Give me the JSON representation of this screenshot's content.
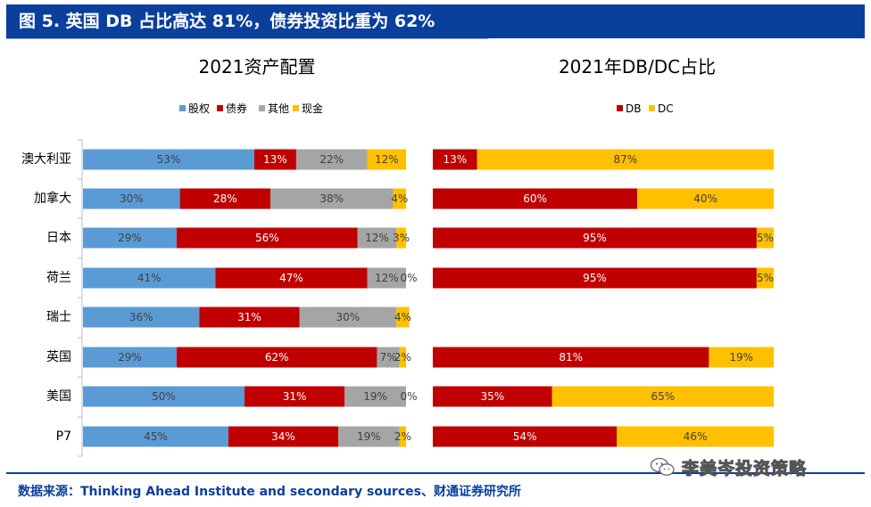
{
  "header": {
    "title": "图 5. 英国 DB 占比高达 81%，债券投资比重为 62%"
  },
  "source": "数据来源：Thinking Ahead Institute and secondary sources、财通证券研究所",
  "watermark": {
    "text": "李美岑投资策略",
    "icon": "wechat-icon"
  },
  "colors": {
    "header_bg": "#0a3f9c",
    "equity": "#5b9bd5",
    "bond": "#c00000",
    "other": "#a5a5a5",
    "cash": "#ffc000"
  },
  "chart_data": [
    {
      "type": "bar",
      "orientation": "horizontal",
      "stacked": true,
      "title": "2021资产配置",
      "categories": [
        "澳大利亚",
        "加拿大",
        "日本",
        "荷兰",
        "瑞士",
        "英国",
        "美国",
        "P7"
      ],
      "series": [
        {
          "name": "股权",
          "color": "#5b9bd5",
          "values": [
            53,
            30,
            29,
            41,
            36,
            29,
            50,
            45
          ],
          "labels": [
            "53%",
            "30%",
            "29%",
            "41%",
            "36%",
            "29%",
            "50%",
            "45%"
          ]
        },
        {
          "name": "债券",
          "color": "#c00000",
          "values": [
            13,
            28,
            56,
            47,
            31,
            62,
            31,
            34
          ],
          "labels": [
            "13%",
            "28%",
            "56%",
            "47%",
            "31%",
            "62%",
            "31%",
            "34%"
          ]
        },
        {
          "name": "其他",
          "color": "#a5a5a5",
          "values": [
            22,
            38,
            12,
            12,
            30,
            7,
            19,
            19
          ],
          "labels": [
            "22%",
            "38%",
            "12%",
            "12%",
            "30%",
            "7%",
            "19%",
            "19%"
          ]
        },
        {
          "name": "现金",
          "color": "#ffc000",
          "values": [
            12,
            4,
            3,
            0,
            4,
            2,
            0,
            2
          ],
          "labels": [
            "12%",
            "4%",
            "3%",
            "0%",
            "4%",
            "2%",
            "0%",
            "2%"
          ]
        }
      ],
      "xlim": [
        0,
        100
      ],
      "legend": "top",
      "grid": false
    },
    {
      "type": "bar",
      "orientation": "horizontal",
      "stacked": true,
      "title": "2021年DB/DC占比",
      "categories": [
        "澳大利亚",
        "加拿大",
        "日本",
        "荷兰",
        "瑞士",
        "英国",
        "美国",
        "P7"
      ],
      "series": [
        {
          "name": "DB",
          "color": "#c00000",
          "values": [
            13,
            60,
            95,
            95,
            null,
            81,
            35,
            54
          ],
          "labels": [
            "13%",
            "60%",
            "95%",
            "95%",
            "",
            "81%",
            "35%",
            "54%"
          ]
        },
        {
          "name": "DC",
          "color": "#ffc000",
          "values": [
            87,
            40,
            5,
            5,
            null,
            19,
            65,
            46
          ],
          "labels": [
            "87%",
            "40%",
            "5%",
            "5%",
            "",
            "19%",
            "65%",
            "46%"
          ]
        }
      ],
      "xlim": [
        0,
        100
      ],
      "legend": "top",
      "grid": false
    }
  ]
}
